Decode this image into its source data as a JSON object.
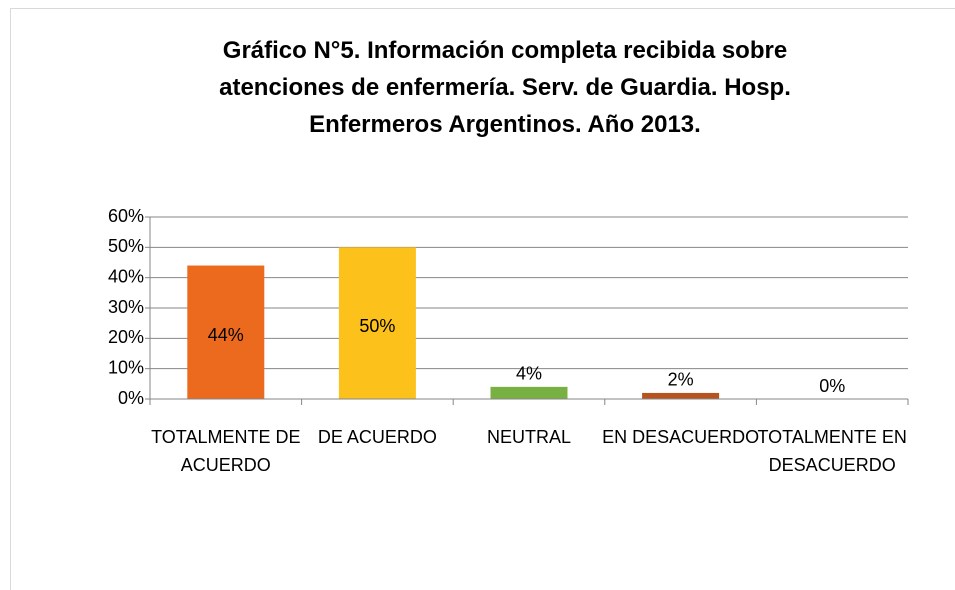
{
  "chart_data": {
    "type": "bar",
    "title": "Gráfico N°5. Información completa recibida sobre atenciones de enfermería. Serv. de Guardia. Hosp. Enfermeros Argentinos. Año 2013.",
    "categories": [
      "TOTALMENTE DE ACUERDO",
      "DE ACUERDO",
      "NEUTRAL",
      "EN DESACUERDO",
      "TOTALMENTE EN DESACUERDO"
    ],
    "values": [
      44,
      50,
      4,
      2,
      0
    ],
    "value_labels": [
      "44%",
      "50%",
      "4%",
      "2%",
      "0%"
    ],
    "colors": [
      "#ec6a1e",
      "#fcc11a",
      "#78b043",
      "#b5541f",
      "#4472c4"
    ],
    "ylim": [
      0,
      60
    ],
    "yticks": [
      {
        "value": 0,
        "label": "0%"
      },
      {
        "value": 10,
        "label": "10%"
      },
      {
        "value": 20,
        "label": "20%"
      },
      {
        "value": 30,
        "label": "30%"
      },
      {
        "value": 40,
        "label": "40%"
      },
      {
        "value": 50,
        "label": "50%"
      },
      {
        "value": 60,
        "label": "60%"
      }
    ],
    "grid": true
  }
}
